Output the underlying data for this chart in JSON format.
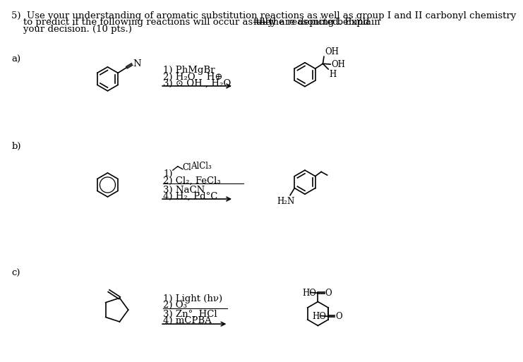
{
  "bg_color": "#ffffff",
  "text_color": "#000000",
  "font_size": 9.5,
  "title_line1": "5)  Use your understanding of aromatic substitution reactions as well as group I and II carbonyl chemistry",
  "title_line2a": "    to predict if the following reactions will occur as they are depicted. Explain ",
  "title_fully": "fully",
  "title_line2b": " the reasoning behind",
  "title_line3": "    your decision. (10 pts.)",
  "label_a": "a)",
  "label_b": "b)",
  "label_c": "c)"
}
